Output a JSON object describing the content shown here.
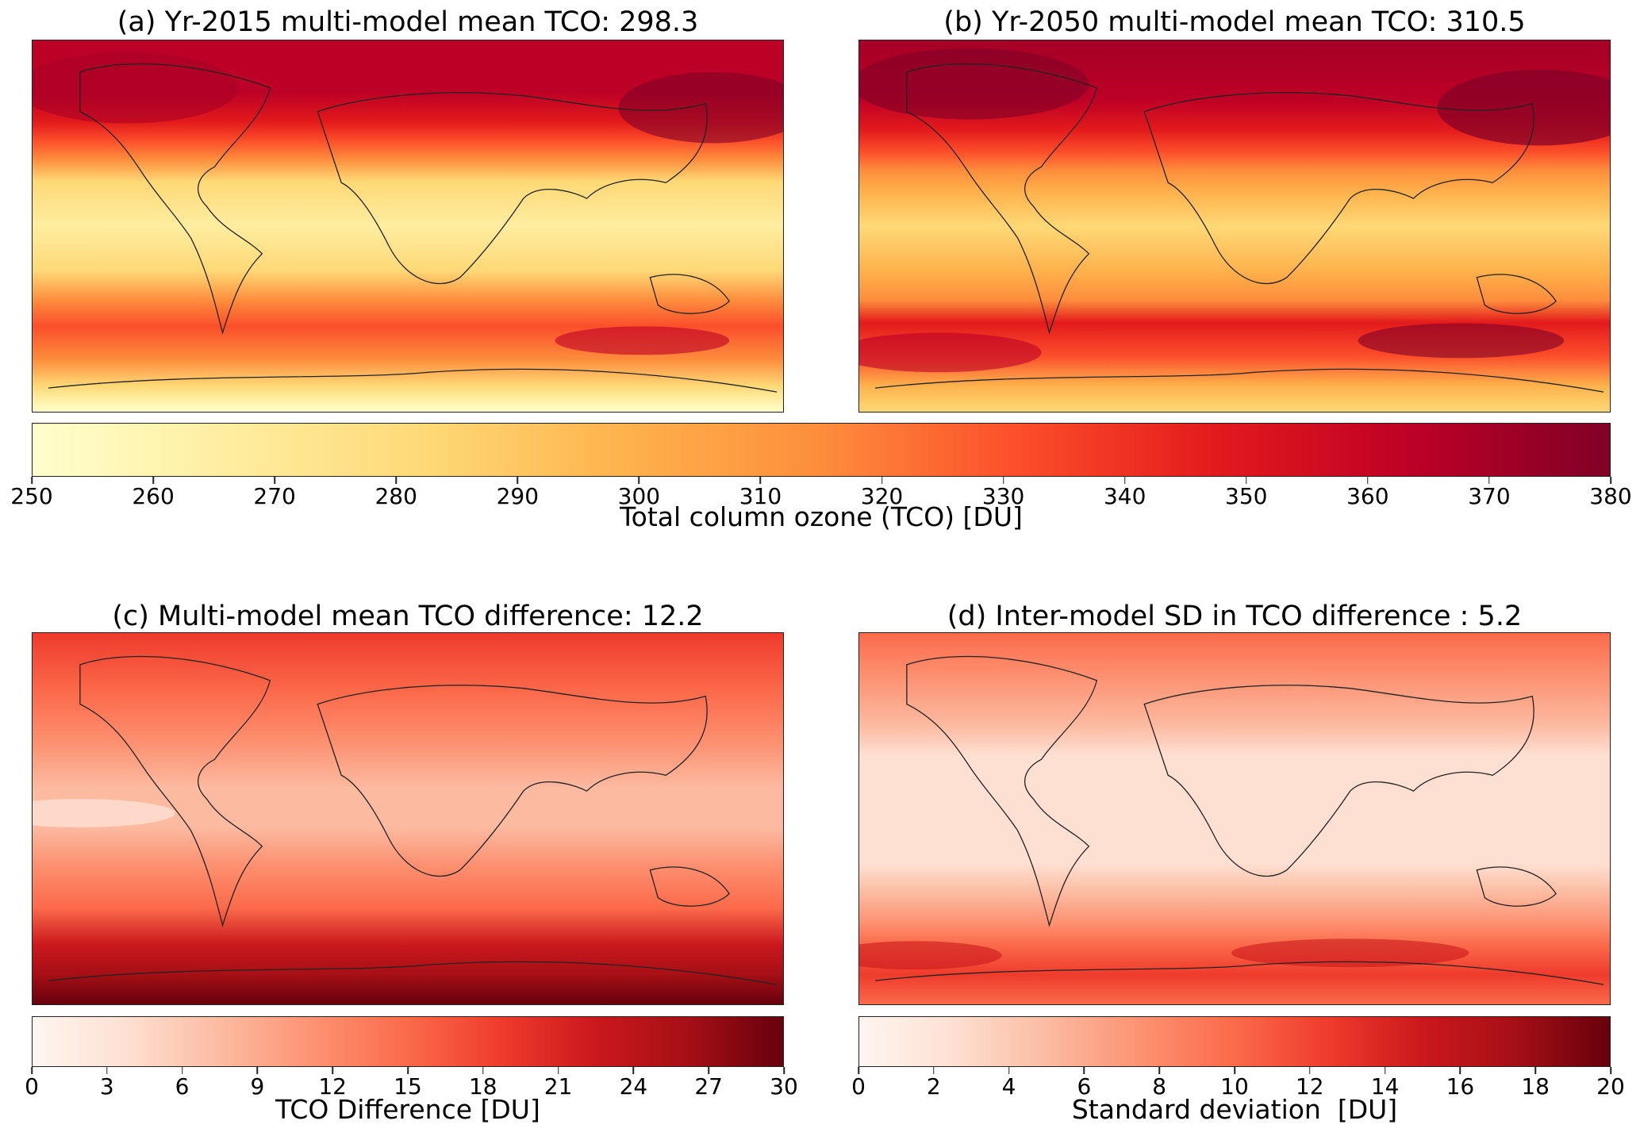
{
  "panels": {
    "a": {
      "title": "(a) Yr-2015 multi-model mean TCO: 298.3",
      "intensity": 0.55
    },
    "b": {
      "title": "(b) Yr-2050 multi-model mean TCO: 310.5",
      "intensity": 0.75
    },
    "c": {
      "title": "(c) Multi-model mean TCO difference: 12.2",
      "intensity": 0.6
    },
    "d": {
      "title": "(d) Inter-model SD in TCO difference : 5.2",
      "intensity": 0.5
    }
  },
  "colorbars": {
    "tco": {
      "label": "Total column ozone (TCO) [DU]",
      "ticks": [
        "250",
        "260",
        "270",
        "280",
        "290",
        "300",
        "310",
        "320",
        "330",
        "340",
        "350",
        "360",
        "370",
        "380"
      ],
      "colors": [
        "#ffffcc",
        "#ffeda0",
        "#fed976",
        "#feb24c",
        "#fd8d3c",
        "#fc4e2a",
        "#e31a1c",
        "#bd0026",
        "#800026"
      ]
    },
    "diff": {
      "label": "TCO Difference [DU]",
      "ticks": [
        "0",
        "3",
        "6",
        "9",
        "12",
        "15",
        "18",
        "21",
        "24",
        "27",
        "30"
      ],
      "colors": [
        "#fff5f0",
        "#fee0d2",
        "#fcbba1",
        "#fc9272",
        "#fb6a4a",
        "#ef3b2c",
        "#cb181d",
        "#a50f15",
        "#67000d"
      ]
    },
    "sd": {
      "label": "Standard deviation  [DU]",
      "ticks": [
        "0",
        "2",
        "4",
        "6",
        "8",
        "10",
        "12",
        "14",
        "16",
        "18",
        "20"
      ],
      "colors": [
        "#fff5f0",
        "#fee0d2",
        "#fcbba1",
        "#fc9272",
        "#fb6a4a",
        "#ef3b2c",
        "#cb181d",
        "#a50f15",
        "#67000d"
      ]
    }
  }
}
